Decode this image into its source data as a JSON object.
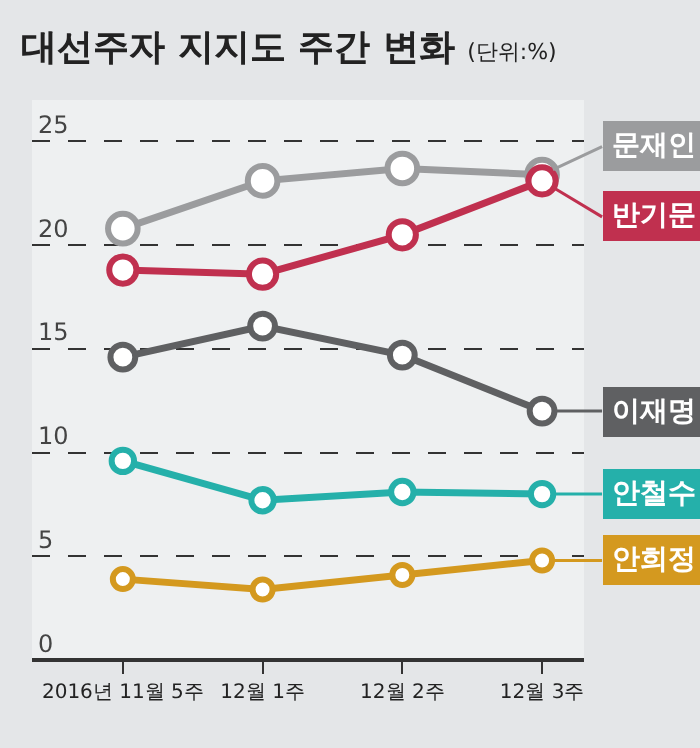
{
  "chart_data": {
    "type": "line",
    "title": "대선주자 지지도 주간 변화",
    "subtitle": "(단위:%)",
    "categories": [
      "2016년 11월 5주",
      "12월 1주",
      "12월 2주",
      "12월 3주"
    ],
    "series": [
      {
        "name": "문재인",
        "color": "#9b9c9e",
        "values": [
          20.8,
          23.1,
          23.7,
          23.4
        ]
      },
      {
        "name": "반기문",
        "color": "#c0304f",
        "values": [
          18.8,
          18.6,
          20.5,
          23.1
        ]
      },
      {
        "name": "이재명",
        "color": "#5f6062",
        "values": [
          14.6,
          16.1,
          14.7,
          12.0
        ]
      },
      {
        "name": "안철수",
        "color": "#25b0aa",
        "values": [
          9.6,
          7.7,
          8.1,
          8.0
        ]
      },
      {
        "name": "안희정",
        "color": "#d4991f",
        "values": [
          3.9,
          3.4,
          4.1,
          4.8
        ]
      }
    ],
    "ylim": [
      0,
      27
    ],
    "yticks": [
      0,
      5,
      10,
      15,
      20,
      25
    ],
    "grid": "y",
    "legend": "right",
    "marker": "circle",
    "line_style": "solid"
  }
}
